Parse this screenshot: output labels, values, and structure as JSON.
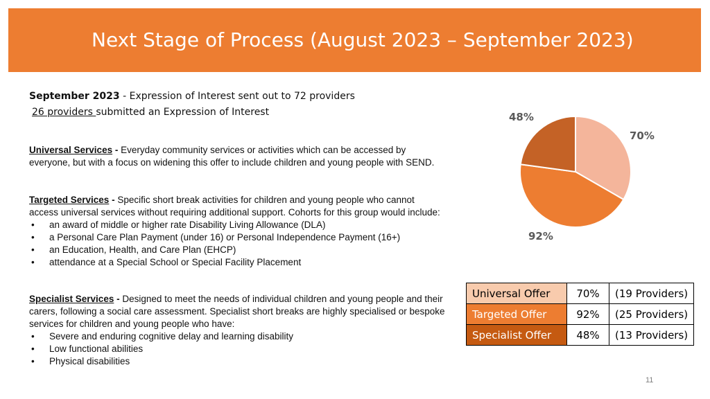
{
  "header": {
    "title": "Next Stage of Process (August 2023 – September 2023)"
  },
  "intro": {
    "date": "September 2023",
    "line1_rest": " - Expression of Interest sent out to 72  providers",
    "line2_underlined": "26 providers ",
    "line2_rest": "submitted an Expression of Interest"
  },
  "services": [
    {
      "heading": "Universal Services",
      "sep": " - ",
      "text": "Everyday community services or activities which can be accessed by everyone, but with a focus on widening this offer to include children and young people with SEND.",
      "bullets": []
    },
    {
      "heading": "Targeted Services",
      "sep": " - ",
      "text": "Specific short break activities for children and young people who cannot access universal services without requiring additional support. Cohorts for this group would include:",
      "bullets": [
        "an award of middle or higher rate Disability Living Allowance (DLA)",
        "a Personal Care Plan Payment (under 16) or Personal Independence Payment (16+)",
        "an Education, Health, and Care Plan (EHCP)",
        "attendance at a Special School or Special Facility Placement"
      ]
    },
    {
      "heading": "Specialist Services",
      "sep": " - ",
      "text": "Designed to meet the needs of individual children and young people and their carers, following a social care assessment. Specialist short breaks are highly specialised or bespoke services for children and young people who have:",
      "bullets": [
        "Severe and enduring cognitive delay and learning disability",
        "Low functional abilities",
        "Physical disabilities"
      ]
    }
  ],
  "chart_data": {
    "type": "pie",
    "categories": [
      "Universal Offer",
      "Targeted Offer",
      "Specialist Offer"
    ],
    "values": [
      70,
      92,
      48
    ],
    "labels": [
      "70%",
      "92%",
      "48%"
    ],
    "colors": [
      "#F4B59B",
      "#ED7D31",
      "#C46226"
    ]
  },
  "table": {
    "rows": [
      {
        "name": "Universal Offer",
        "pct": "70%",
        "providers": "(19 Providers)"
      },
      {
        "name": "Targeted Offer",
        "pct": "92%",
        "providers": "(25 Providers)"
      },
      {
        "name": "Specialist Offer",
        "pct": "48%",
        "providers": "(13 Providers)"
      }
    ]
  },
  "footer": {
    "page_number": "11"
  }
}
